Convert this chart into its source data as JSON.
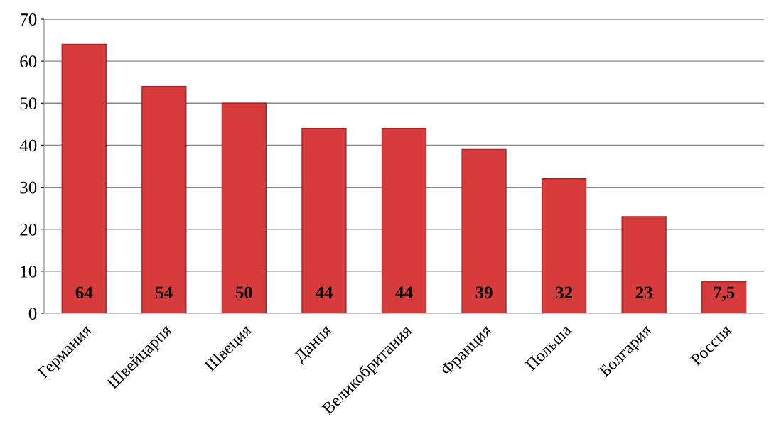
{
  "chart_data": {
    "type": "bar",
    "categories": [
      "Германия",
      "Швейцария",
      "Швеция",
      "Дания",
      "Великобритания",
      "Франция",
      "Польша",
      "Болгария",
      "Россия"
    ],
    "values": [
      64,
      54,
      50,
      44,
      44,
      39,
      32,
      23,
      7.5
    ],
    "value_labels": [
      "64",
      "54",
      "50",
      "44",
      "44",
      "39",
      "32",
      "23",
      "7,5"
    ],
    "color": "#d63c3c",
    "ylim": [
      0,
      70
    ],
    "yticks": [
      0,
      10,
      20,
      30,
      40,
      50,
      60,
      70
    ],
    "grid": "y",
    "legend": false
  }
}
